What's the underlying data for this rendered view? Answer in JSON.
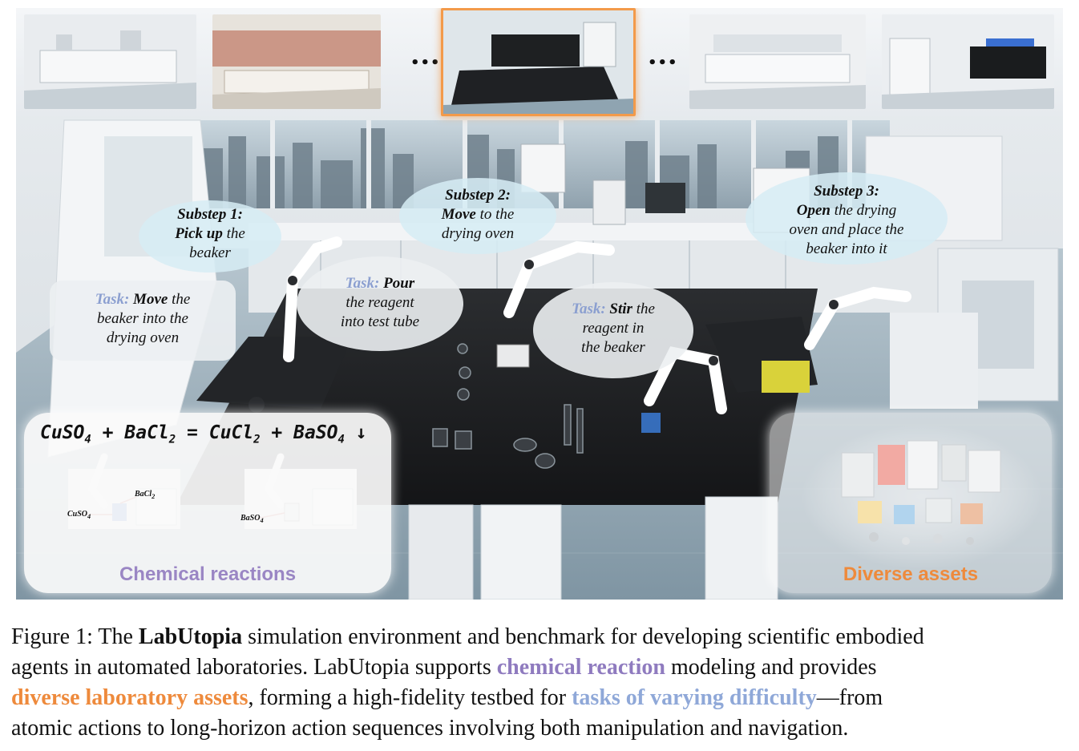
{
  "figure": {
    "ellipsis_left": "•••",
    "ellipsis_right": "•••",
    "bubbles": {
      "substep1": {
        "title": "Substep 1:",
        "verb": "Pick up",
        "rest1": " the",
        "rest2": "beaker"
      },
      "substep2": {
        "title": "Substep 2:",
        "verb": "Move",
        "rest1": " to the",
        "rest2": "drying oven"
      },
      "substep3": {
        "title": "Substep 3:",
        "verb": "Open",
        "rest1": " the drying",
        "rest2": "oven and place the",
        "rest3": "beaker into it"
      },
      "task_move": {
        "label": "Task:",
        "verb": "Move",
        "rest1": " the",
        "rest2": "beaker into the",
        "rest3": "drying oven"
      },
      "task_pour": {
        "label": "Task:",
        "verb": "Pour",
        "rest1": "the reagent",
        "rest2": "into test tube"
      },
      "task_stir": {
        "label": "Task:",
        "verb": "Stir",
        "rest1": " the",
        "rest2": "reagent in",
        "rest3": "the beaker"
      }
    },
    "chemical_panel": {
      "equation_lhs1": "CuSO",
      "equation_sub1": "4",
      "equation_plus1": " + BaCl",
      "equation_sub2": "2",
      "equation_eq": " = CuCl",
      "equation_sub3": "2",
      "equation_plus2": " + BaSO",
      "equation_sub4": "4",
      "equation_arrow": " ↓",
      "label_bacl2": "BaCl",
      "label_bacl2_sub": "2",
      "label_cuso4": "CuSO",
      "label_cuso4_sub": "4",
      "label_baso4": "BaSO",
      "label_baso4_sub": "4",
      "title": "Chemical reactions",
      "title_color": "#9a86c4"
    },
    "assets_panel": {
      "title": "Diverse assets",
      "title_color": "#ee8a3c"
    },
    "thumb_highlight_color": "#f39a4a"
  },
  "caption": {
    "l1a": "Figure 1: The ",
    "l1b": "LabUtopia",
    "l1c": " simulation environment and benchmark for developing scientific embodied",
    "l2a": "agents in automated laboratories. LabUtopia supports ",
    "l2b": "chemical reaction",
    "l2c": " modeling and provides",
    "l3a": "diverse laboratory assets",
    "l3b": ", forming a high-fidelity testbed for ",
    "l3c": "tasks of varying difficulty",
    "l3d": "—from",
    "l4": "atomic actions to long-horizon action sequences involving both manipulation and navigation."
  }
}
